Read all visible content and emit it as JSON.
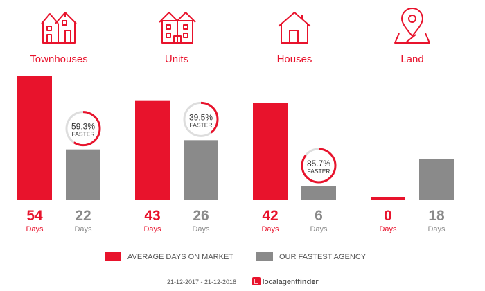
{
  "chart_data": {
    "type": "bar",
    "categories": [
      "Townhouses",
      "Units",
      "Houses",
      "Land"
    ],
    "series": [
      {
        "name": "AVERAGE DAYS ON MARKET",
        "values": [
          54,
          43,
          42,
          0
        ],
        "color": "#e8132c"
      },
      {
        "name": "OUR FASTEST AGENCY",
        "values": [
          22,
          26,
          6,
          18
        ],
        "color": "#8a8a8a"
      }
    ],
    "unit_label": "Days",
    "faster": [
      {
        "pct": "59.3%",
        "fraction": 0.593,
        "label": "FASTER"
      },
      {
        "pct": "39.5%",
        "fraction": 0.395,
        "label": "FASTER"
      },
      {
        "pct": "85.7%",
        "fraction": 0.857,
        "label": "FASTER"
      },
      null
    ],
    "icons": [
      "townhouse-icon",
      "unit-icon",
      "house-icon",
      "land-pin-icon"
    ],
    "ylim": [
      0,
      54
    ],
    "legend_position": "bottom"
  },
  "footer": {
    "date_range": "21-12-2017 - 21-12-2018",
    "brand_light": "localagent",
    "brand_bold": "finder",
    "logo_icon": "localagentfinder-logo-icon"
  },
  "colors": {
    "accent": "#e8132c",
    "grey": "#8a8a8a",
    "ring_track": "#dddddd"
  }
}
